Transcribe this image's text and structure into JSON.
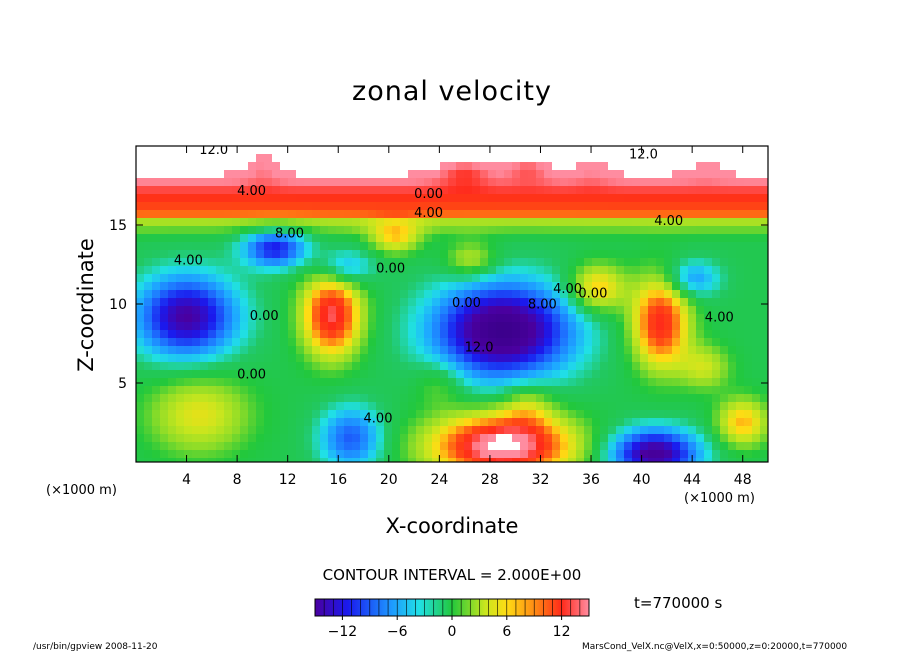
{
  "chart_data": {
    "type": "heatmap",
    "title": "zonal velocity",
    "xlabel": "X-coordinate",
    "ylabel": "Z-coordinate",
    "x_unit_left": "(×1000 m)",
    "x_unit_right": "(×1000 m)",
    "xlim": [
      0,
      50
    ],
    "ylim": [
      0,
      20
    ],
    "x_ticks": [
      4,
      8,
      12,
      16,
      20,
      24,
      28,
      32,
      36,
      40,
      44,
      48
    ],
    "y_ticks": [
      5,
      10,
      15
    ],
    "contour_interval_text": "CONTOUR INTERVAL = 2.000E+00",
    "colorbar": {
      "min": -15,
      "max": 15,
      "ticks": [
        -12,
        -6,
        0,
        6,
        12
      ]
    },
    "contour_labels": [
      "12.0",
      "12.0",
      "8.00",
      "4.00",
      "0.00",
      "4.00",
      "4.00",
      "4.00",
      "8.00",
      "12.0",
      "0.00",
      "0.00",
      "0.00",
      "4.00",
      "0.00",
      "4.00",
      "4.00",
      "0.00"
    ],
    "time_label": "t=770000 s",
    "footer_left": "/usr/bin/gpview   2008-11-20",
    "footer_right": "MarsCond_VelX.nc@VelX,x=0:50000,z=0:20000,t=770000",
    "colors": {
      "neg_strong": "#4a00a0",
      "neutral": "#22c83c",
      "pos_strong": "#ff2a1a",
      "extreme": "#ffffff"
    }
  }
}
